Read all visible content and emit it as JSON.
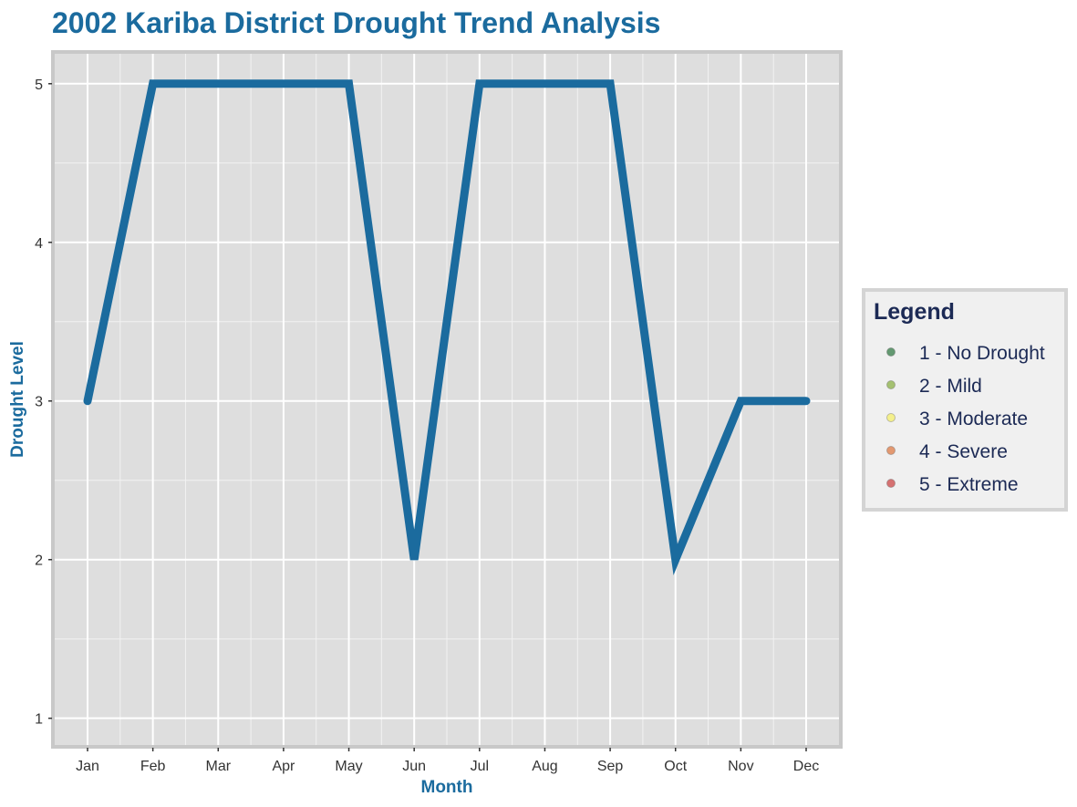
{
  "chart_data": {
    "type": "line",
    "title": "2002 Kariba District Drought Trend Analysis",
    "xlabel": "Month",
    "ylabel": "Drought Level",
    "categories": [
      "Jan",
      "Feb",
      "Mar",
      "Apr",
      "May",
      "Jun",
      "Jul",
      "Aug",
      "Sep",
      "Oct",
      "Nov",
      "Dec"
    ],
    "series": [
      {
        "values": [
          3,
          5,
          5,
          5,
          5,
          2,
          5,
          5,
          5,
          2,
          3,
          3
        ],
        "color": "#1b6b9e"
      }
    ],
    "ylim": [
      0.82,
      5.2
    ],
    "yticks": [
      "1",
      "2",
      "3",
      "4",
      "5"
    ],
    "grid": true,
    "legend": {
      "title": "Legend",
      "position": "right",
      "items": [
        {
          "label": "1 - No Drought",
          "color": "#4a8a5a"
        },
        {
          "label": "2 - Mild",
          "color": "#98b85a"
        },
        {
          "label": "3 - Moderate",
          "color": "#f5f07a"
        },
        {
          "label": "4 - Severe",
          "color": "#e08a5a"
        },
        {
          "label": "5 - Extreme",
          "color": "#d05a5a"
        }
      ]
    },
    "colors": {
      "title": "#1b6b9e",
      "axis_title": "#1b6b9e",
      "legend_text": "#1c2a55",
      "panel_bg": "#dedede",
      "panel_border": "#c8c8c8",
      "legend_bg": "#f0f0f0"
    }
  }
}
